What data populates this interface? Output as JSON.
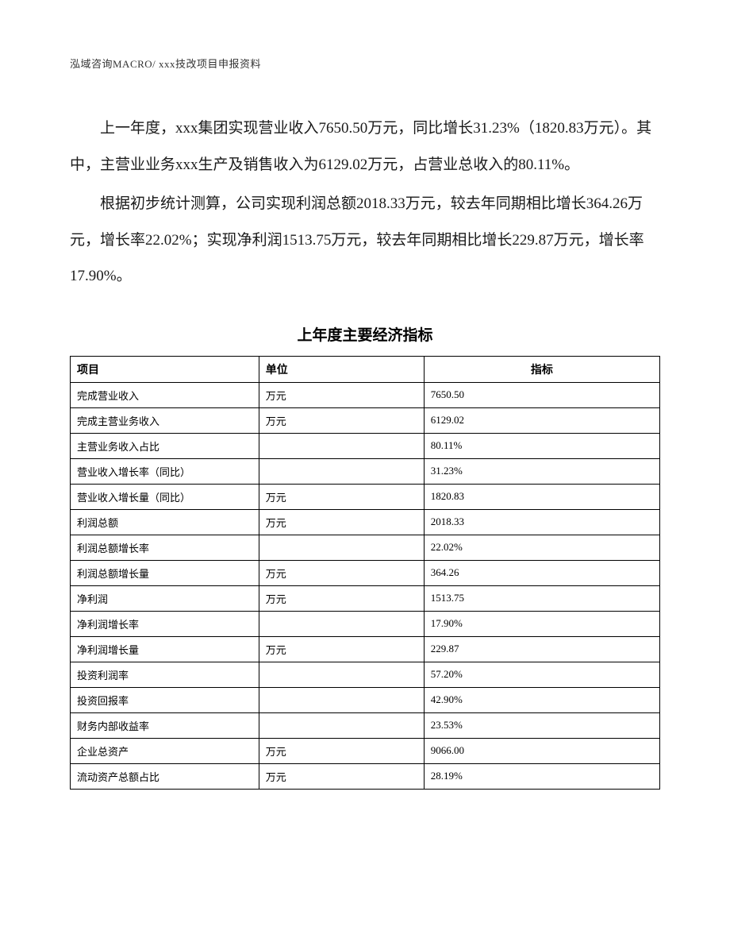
{
  "header": "泓域咨询MACRO/    xxx技改项目申报资料",
  "paragraphs": {
    "p1": "上一年度，xxx集团实现营业收入7650.50万元，同比增长31.23%（1820.83万元）。其中，主营业业务xxx生产及销售收入为6129.02万元，占营业总收入的80.11%。",
    "p2": "根据初步统计测算，公司实现利润总额2018.33万元，较去年同期相比增长364.26万元，增长率22.02%；实现净利润1513.75万元，较去年同期相比增长229.87万元，增长率17.90%。"
  },
  "table": {
    "title": "上年度主要经济指标",
    "columns": [
      "项目",
      "单位",
      "指标"
    ],
    "rows": [
      [
        "完成营业收入",
        "万元",
        "7650.50"
      ],
      [
        "完成主营业务收入",
        "万元",
        "6129.02"
      ],
      [
        "主营业务收入占比",
        "",
        "80.11%"
      ],
      [
        "营业收入增长率（同比）",
        "",
        "31.23%"
      ],
      [
        "营业收入增长量（同比）",
        "万元",
        "1820.83"
      ],
      [
        "利润总额",
        "万元",
        "2018.33"
      ],
      [
        "利润总额增长率",
        "",
        "22.02%"
      ],
      [
        "利润总额增长量",
        "万元",
        "364.26"
      ],
      [
        "净利润",
        "万元",
        "1513.75"
      ],
      [
        "净利润增长率",
        "",
        "17.90%"
      ],
      [
        "净利润增长量",
        "万元",
        "229.87"
      ],
      [
        "投资利润率",
        "",
        "57.20%"
      ],
      [
        "投资回报率",
        "",
        "42.90%"
      ],
      [
        "财务内部收益率",
        "",
        "23.53%"
      ],
      [
        "企业总资产",
        "万元",
        "9066.00"
      ],
      [
        "流动资产总额占比",
        "万元",
        "28.19%"
      ]
    ]
  },
  "styling": {
    "page_bg": "#ffffff",
    "text_color": "#000000",
    "header_color": "#333333",
    "border_color": "#000000",
    "body_fontsize": 19,
    "table_fontsize": 13,
    "header_fontsize": 13,
    "title_fontsize": 19,
    "line_height": 2.4
  }
}
